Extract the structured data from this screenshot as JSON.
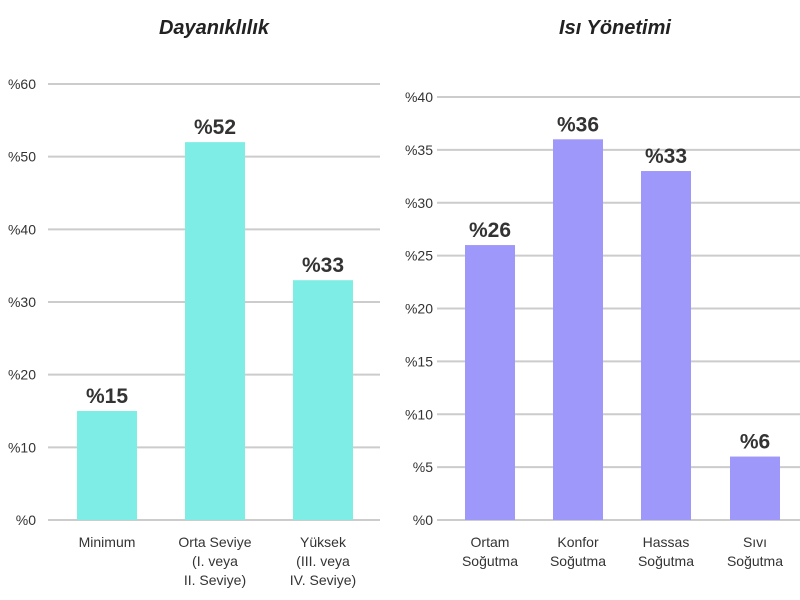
{
  "chart_data": [
    {
      "type": "bar",
      "title": "Dayanıklılık",
      "categories": [
        [
          "Minimum"
        ],
        [
          "Orta Seviye",
          "(I. veya",
          "II. Seviye)"
        ],
        [
          "Yüksek",
          "(III. veya",
          "IV. Seviye)"
        ]
      ],
      "values": [
        15,
        52,
        33
      ],
      "data_labels": [
        "%15",
        "%52",
        "%33"
      ],
      "yticks": [
        0,
        10,
        20,
        30,
        40,
        50,
        60
      ],
      "ytick_labels": [
        "%0",
        "%10",
        "%20",
        "%30",
        "%40",
        "%50",
        "%60"
      ],
      "ylim": [
        0,
        60
      ],
      "grid": true,
      "color": "#7EEDE6"
    },
    {
      "type": "bar",
      "title": "Isı Yönetimi",
      "categories": [
        [
          "Ortam",
          "Soğutma"
        ],
        [
          "Konfor",
          "Soğutma"
        ],
        [
          "Hassas",
          "Soğutma"
        ],
        [
          "Sıvı",
          "Soğutma"
        ]
      ],
      "values": [
        26,
        36,
        33,
        6
      ],
      "data_labels": [
        "%26",
        "%36",
        "%33",
        "%6"
      ],
      "yticks": [
        0,
        5,
        10,
        15,
        20,
        25,
        30,
        35,
        40
      ],
      "ytick_labels": [
        "%0",
        "%5",
        "%10",
        "%15",
        "%20",
        "%25",
        "%30",
        "%35",
        "%40"
      ],
      "ylim": [
        0,
        40
      ],
      "grid": true,
      "color": "#9F98FB"
    }
  ]
}
